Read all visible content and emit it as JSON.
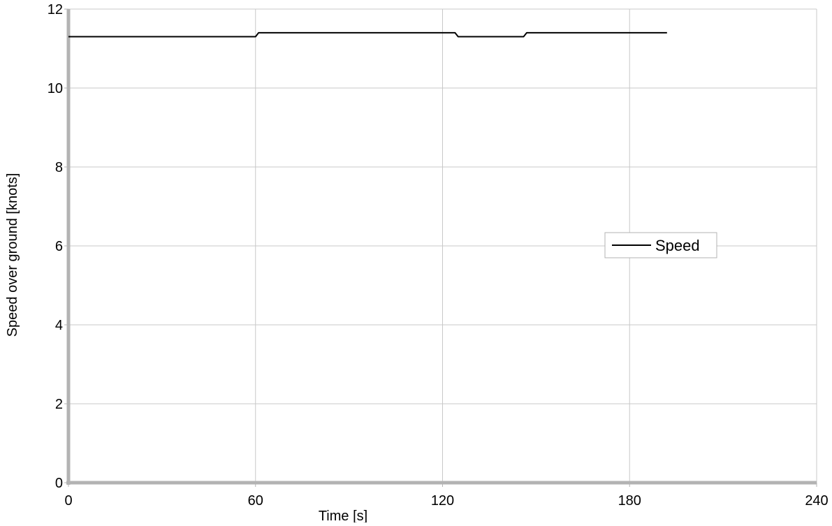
{
  "chart_data": {
    "type": "line",
    "title": "",
    "xlabel": "Time [s]",
    "ylabel": "Speed over ground [knots]",
    "xlim": [
      0,
      240
    ],
    "ylim": [
      0,
      12
    ],
    "x_ticks": [
      0,
      60,
      120,
      180,
      240
    ],
    "y_ticks": [
      0,
      2,
      4,
      6,
      8,
      10,
      12
    ],
    "grid": true,
    "legend_position": "right",
    "series": [
      {
        "name": "Speed",
        "color": "#000000",
        "x": [
          0,
          60,
          61,
          124,
          125,
          146,
          147,
          192
        ],
        "y": [
          11.3,
          11.3,
          11.4,
          11.4,
          11.3,
          11.3,
          11.4,
          11.4
        ]
      }
    ]
  }
}
